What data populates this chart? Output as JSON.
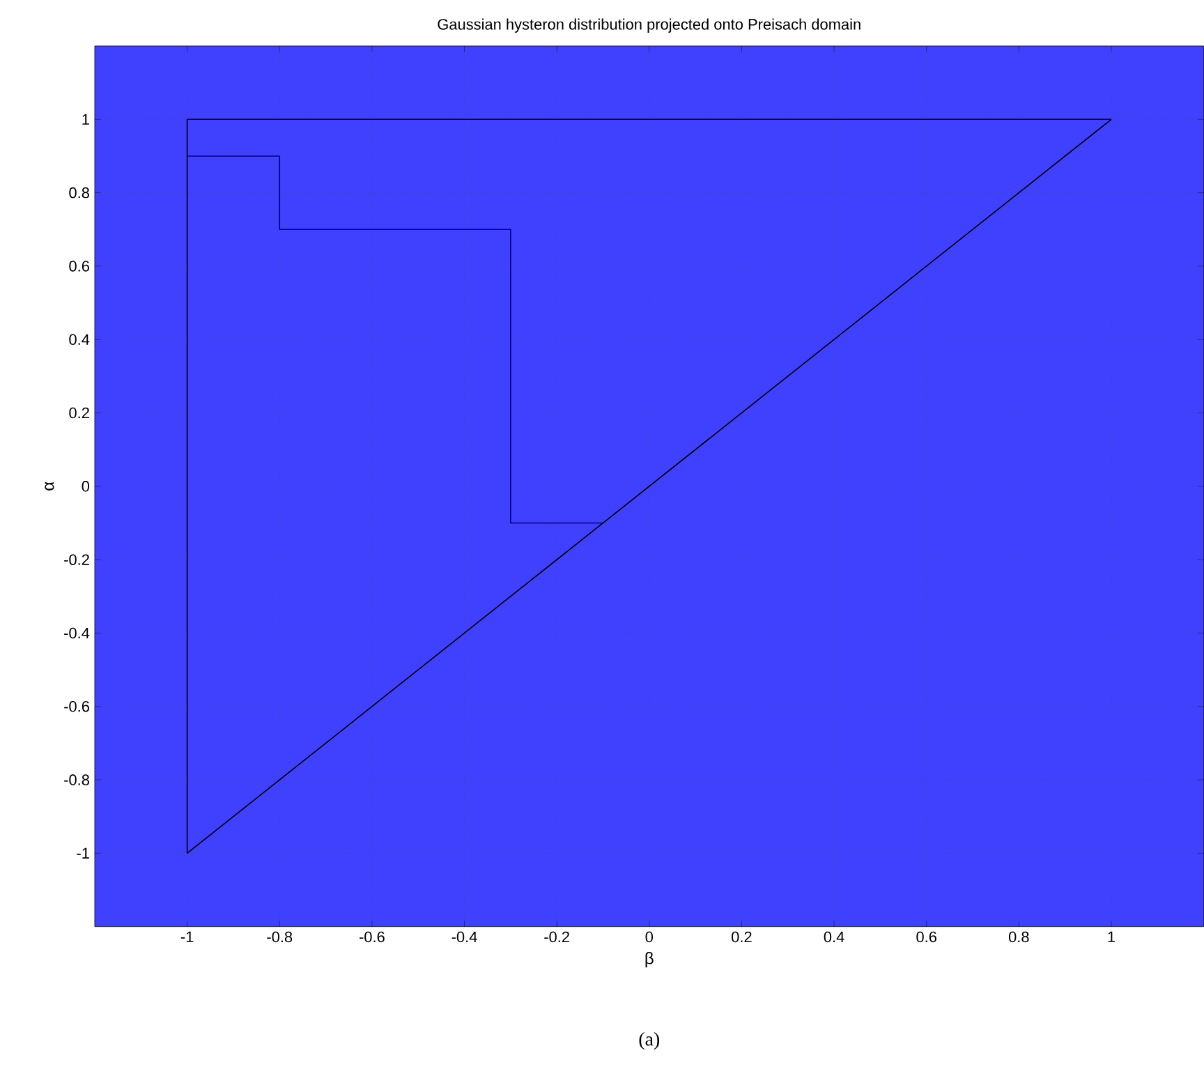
{
  "chart_data": {
    "type": "line",
    "title": "Gaussian hysteron distribution projected onto Preisach domain",
    "xlabel": "β",
    "ylabel": "α",
    "annotations": [
      "(a)"
    ],
    "series": [
      {
        "color": "#000000",
        "x": [
          -1,
          -1
        ],
        "values": [
          -1,
          1
        ]
      },
      {
        "color": "#000000",
        "x": [
          -1,
          1
        ],
        "values": [
          1,
          1
        ]
      },
      {
        "color": "#000000",
        "x": [
          -1,
          1
        ],
        "values": [
          -1,
          1
        ]
      },
      {
        "color": "#000080",
        "x": [
          -1,
          -0.8,
          -0.8,
          -0.3,
          -0.3,
          -0.1
        ],
        "values": [
          0.9,
          0.9,
          0.7,
          0.7,
          -0.1,
          -0.1
        ]
      }
    ],
    "xlim": [
      -1.2,
      1.2
    ],
    "ylim": [
      -1.2,
      1.2
    ],
    "xticks": [
      -1,
      -0.8,
      -0.6,
      -0.4,
      -0.2,
      0,
      0.2,
      0.4,
      0.6,
      0.8,
      1
    ],
    "yticks": [
      -1,
      -0.8,
      -0.6,
      -0.4,
      -0.2,
      0,
      0.2,
      0.4,
      0.6,
      0.8,
      1
    ],
    "grid": true,
    "marker": "none",
    "line_style": "solid"
  }
}
